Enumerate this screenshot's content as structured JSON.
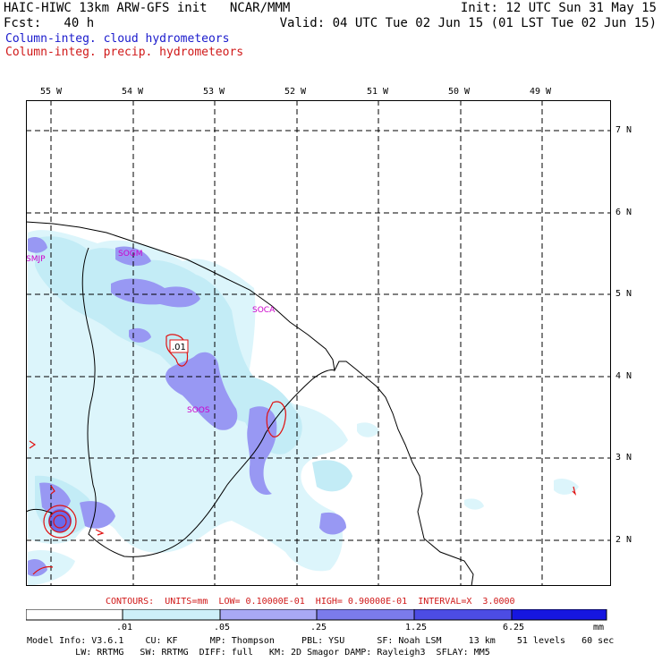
{
  "header": {
    "line1_left": "HAIC-HIWC 13km ARW-GFS init   NCAR/MMM",
    "line1_right": "Init: 12 UTC Sun 31 May 15",
    "line2_left": "Fcst:   40 h",
    "line2_right": "Valid: 04 UTC Tue 02 Jun 15 (01 LST Tue 02 Jun 15)",
    "legend_cloud": "Column-integ. cloud hydrometeors",
    "legend_precip": "Column-integ. precip. hydrometeors"
  },
  "map": {
    "lon_labels": [
      "55 W",
      "54 W",
      "53 W",
      "52 W",
      "51 W",
      "50 W",
      "49 W"
    ],
    "lat_labels": [
      "7 N",
      "6 N",
      "5 N",
      "4 N",
      "3 N",
      "2 N"
    ],
    "stations": [
      {
        "id": "SMJP"
      },
      {
        "id": "SOGM"
      },
      {
        "id": "SOCA"
      },
      {
        "id": "SOOS"
      }
    ],
    "contour_label": ".01",
    "colors": {
      "frame": "#000000",
      "grid": "#000000",
      "coast": "#000000",
      "station": "#cc00cc",
      "precip_contour": "#e01010",
      "cloud_lightest": "#dff6fb",
      "cloud_light": "#c8eef8",
      "cloud_mid": "#9c9cf4",
      "cloud_dark": "#6a6aea"
    }
  },
  "contour_info": "CONTOURS:  UNITS=mm  LOW= 0.10000E-01  HIGH= 0.90000E-01  INTERVAL=X  3.0000",
  "scale": {
    "ticks": [
      ".01",
      ".05",
      ".25",
      "1.25",
      "6.25"
    ],
    "unit": "mm",
    "colors": [
      "#ffffff",
      "#cdeff8",
      "#a9a9f5",
      "#7b7bec",
      "#4c4ce4",
      "#1616e0"
    ]
  },
  "footer": {
    "line1": "Model Info: V3.6.1    CU: KF      MP: Thompson     PBL: YSU      SF: Noah LSM     13 km    51 levels   60 sec",
    "line2": "         LW: RRTMG   SW: RRTMG  DIFF: full   KM: 2D Smagor DAMP: Rayleigh3  SFLAY: MM5"
  }
}
